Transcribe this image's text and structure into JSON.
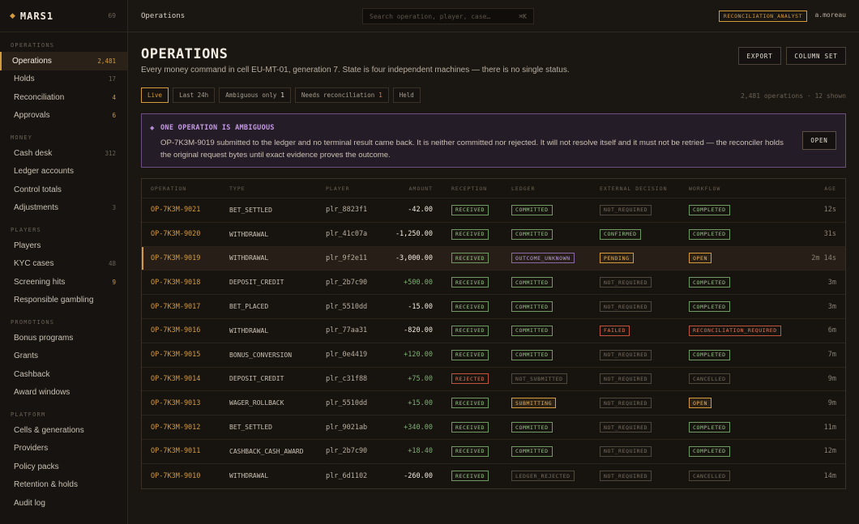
{
  "brand": {
    "name": "MARS1",
    "version": "69"
  },
  "sidebar": {
    "sections": [
      {
        "title": "OPERATIONS",
        "items": [
          {
            "label": "Operations",
            "count": "2,481",
            "active": true,
            "hot": true
          },
          {
            "label": "Holds",
            "count": "17"
          },
          {
            "label": "Reconciliation",
            "count": "4",
            "hot": true
          },
          {
            "label": "Approvals",
            "count": "6",
            "hot": true
          }
        ]
      },
      {
        "title": "MONEY",
        "items": [
          {
            "label": "Cash desk",
            "count": "312"
          },
          {
            "label": "Ledger accounts",
            "count": ""
          },
          {
            "label": "Control totals",
            "count": ""
          },
          {
            "label": "Adjustments",
            "count": "3"
          }
        ]
      },
      {
        "title": "PLAYERS",
        "items": [
          {
            "label": "Players",
            "count": ""
          },
          {
            "label": "KYC cases",
            "count": "48"
          },
          {
            "label": "Screening hits",
            "count": "9",
            "hot": true
          },
          {
            "label": "Responsible gambling",
            "count": ""
          }
        ]
      },
      {
        "title": "PROMOTIONS",
        "items": [
          {
            "label": "Bonus programs",
            "count": ""
          },
          {
            "label": "Grants",
            "count": ""
          },
          {
            "label": "Cashback",
            "count": ""
          },
          {
            "label": "Award windows",
            "count": ""
          }
        ]
      },
      {
        "title": "PLATFORM",
        "items": [
          {
            "label": "Cells & generations",
            "count": ""
          },
          {
            "label": "Providers",
            "count": ""
          },
          {
            "label": "Policy packs",
            "count": ""
          },
          {
            "label": "Retention & holds",
            "count": ""
          },
          {
            "label": "Audit log",
            "count": ""
          }
        ]
      }
    ]
  },
  "topbar": {
    "breadcrumb": "Operations",
    "search_placeholder": "Search operation, player, case…",
    "search_shortcut": "⌘K",
    "role": "RECONCILIATION_ANALYST",
    "user": "a.moreau"
  },
  "page": {
    "title": "OPERATIONS",
    "subtitle": "Every money command in cell EU-MT-01, generation 7. State is four independent machines — there is no single status.",
    "export_label": "EXPORT",
    "column_set_label": "COLUMN SET"
  },
  "filters": {
    "chips": [
      {
        "label": "Live",
        "count": "",
        "on": true
      },
      {
        "label": "Last 24h",
        "count": ""
      },
      {
        "label": "Ambiguous only",
        "count": "1"
      },
      {
        "label": "Needs reconciliation",
        "count": "1",
        "red": true
      },
      {
        "label": "Held",
        "count": ""
      }
    ],
    "total": "2,481 operations · 12 shown"
  },
  "alert": {
    "title": "ONE OPERATION IS AMBIGUOUS",
    "body": "OP-7K3M-9019 submitted to the ledger and no terminal result came back. It is neither committed nor rejected. It will not resolve itself and it must not be retried — the reconciler holds the original request bytes until exact evidence proves the outcome.",
    "open_label": "OPEN"
  },
  "table": {
    "headers": {
      "operation": "OPERATION",
      "type": "TYPE",
      "player": "PLAYER",
      "amount": "AMOUNT",
      "reception": "RECEPTION",
      "ledger": "LEDGER",
      "external": "EXTERNAL DECISION",
      "workflow": "WORKFLOW",
      "age": "AGE"
    },
    "rows": [
      {
        "op": "OP-7K3M-9021",
        "type": "BET_SETTLED",
        "player": "plr_8823f1",
        "amount": "-42.00",
        "pos": false,
        "reception": "RECEIVED",
        "ledger": "COMMITTED",
        "external": "NOT_REQUIRED",
        "workflow": "COMPLETED",
        "age": "12s"
      },
      {
        "op": "OP-7K3M-9020",
        "type": "WITHDRAWAL",
        "player": "plr_41c07a",
        "amount": "-1,250.00",
        "pos": false,
        "reception": "RECEIVED",
        "ledger": "COMMITTED",
        "external": "CONFIRMED",
        "workflow": "COMPLETED",
        "age": "31s"
      },
      {
        "op": "OP-7K3M-9019",
        "type": "WITHDRAWAL",
        "player": "plr_9f2e11",
        "amount": "-3,000.00",
        "pos": false,
        "reception": "RECEIVED",
        "ledger": "OUTCOME_UNKNOWN",
        "external": "PENDING",
        "workflow": "OPEN",
        "age": "2m 14s",
        "hl": true
      },
      {
        "op": "OP-7K3M-9018",
        "type": "DEPOSIT_CREDIT",
        "player": "plr_2b7c90",
        "amount": "+500.00",
        "pos": true,
        "reception": "RECEIVED",
        "ledger": "COMMITTED",
        "external": "NOT_REQUIRED",
        "workflow": "COMPLETED",
        "age": "3m"
      },
      {
        "op": "OP-7K3M-9017",
        "type": "BET_PLACED",
        "player": "plr_5510dd",
        "amount": "-15.00",
        "pos": false,
        "reception": "RECEIVED",
        "ledger": "COMMITTED",
        "external": "NOT_REQUIRED",
        "workflow": "COMPLETED",
        "age": "3m"
      },
      {
        "op": "OP-7K3M-9016",
        "type": "WITHDRAWAL",
        "player": "plr_77aa31",
        "amount": "-820.00",
        "pos": false,
        "reception": "RECEIVED",
        "ledger": "COMMITTED",
        "external": "FAILED",
        "workflow": "RECONCILIATION_REQUIRED",
        "age": "6m"
      },
      {
        "op": "OP-7K3M-9015",
        "type": "BONUS_CONVERSION",
        "player": "plr_0e4419",
        "amount": "+120.00",
        "pos": true,
        "reception": "RECEIVED",
        "ledger": "COMMITTED",
        "external": "NOT_REQUIRED",
        "workflow": "COMPLETED",
        "age": "7m"
      },
      {
        "op": "OP-7K3M-9014",
        "type": "DEPOSIT_CREDIT",
        "player": "plr_c31f88",
        "amount": "+75.00",
        "pos": true,
        "reception": "REJECTED",
        "ledger": "NOT_SUBMITTED",
        "external": "NOT_REQUIRED",
        "workflow": "CANCELLED",
        "age": "9m"
      },
      {
        "op": "OP-7K3M-9013",
        "type": "WAGER_ROLLBACK",
        "player": "plr_5510dd",
        "amount": "+15.00",
        "pos": true,
        "reception": "RECEIVED",
        "ledger": "SUBMITTING",
        "external": "NOT_REQUIRED",
        "workflow": "OPEN",
        "age": "9m"
      },
      {
        "op": "OP-7K3M-9012",
        "type": "BET_SETTLED",
        "player": "plr_9021ab",
        "amount": "+340.00",
        "pos": true,
        "reception": "RECEIVED",
        "ledger": "COMMITTED",
        "external": "NOT_REQUIRED",
        "workflow": "COMPLETED",
        "age": "11m"
      },
      {
        "op": "OP-7K3M-9011",
        "type": "CASHBACK_CASH_AWARD",
        "player": "plr_2b7c90",
        "amount": "+18.40",
        "pos": true,
        "reception": "RECEIVED",
        "ledger": "COMMITTED",
        "external": "NOT_REQUIRED",
        "workflow": "COMPLETED",
        "age": "12m"
      },
      {
        "op": "OP-7K3M-9010",
        "type": "WITHDRAWAL",
        "player": "plr_6d1102",
        "amount": "-260.00",
        "pos": false,
        "reception": "RECEIVED",
        "ledger": "LEDGER_REJECTED",
        "external": "NOT_REQUIRED",
        "workflow": "CANCELLED",
        "age": "14m"
      }
    ]
  },
  "colors": {
    "accent": "#d49a3c",
    "ok": "#9cc58f",
    "muted": "#7a7062",
    "danger": "#e07a5a",
    "ambiguous": "#bf9ee0"
  }
}
